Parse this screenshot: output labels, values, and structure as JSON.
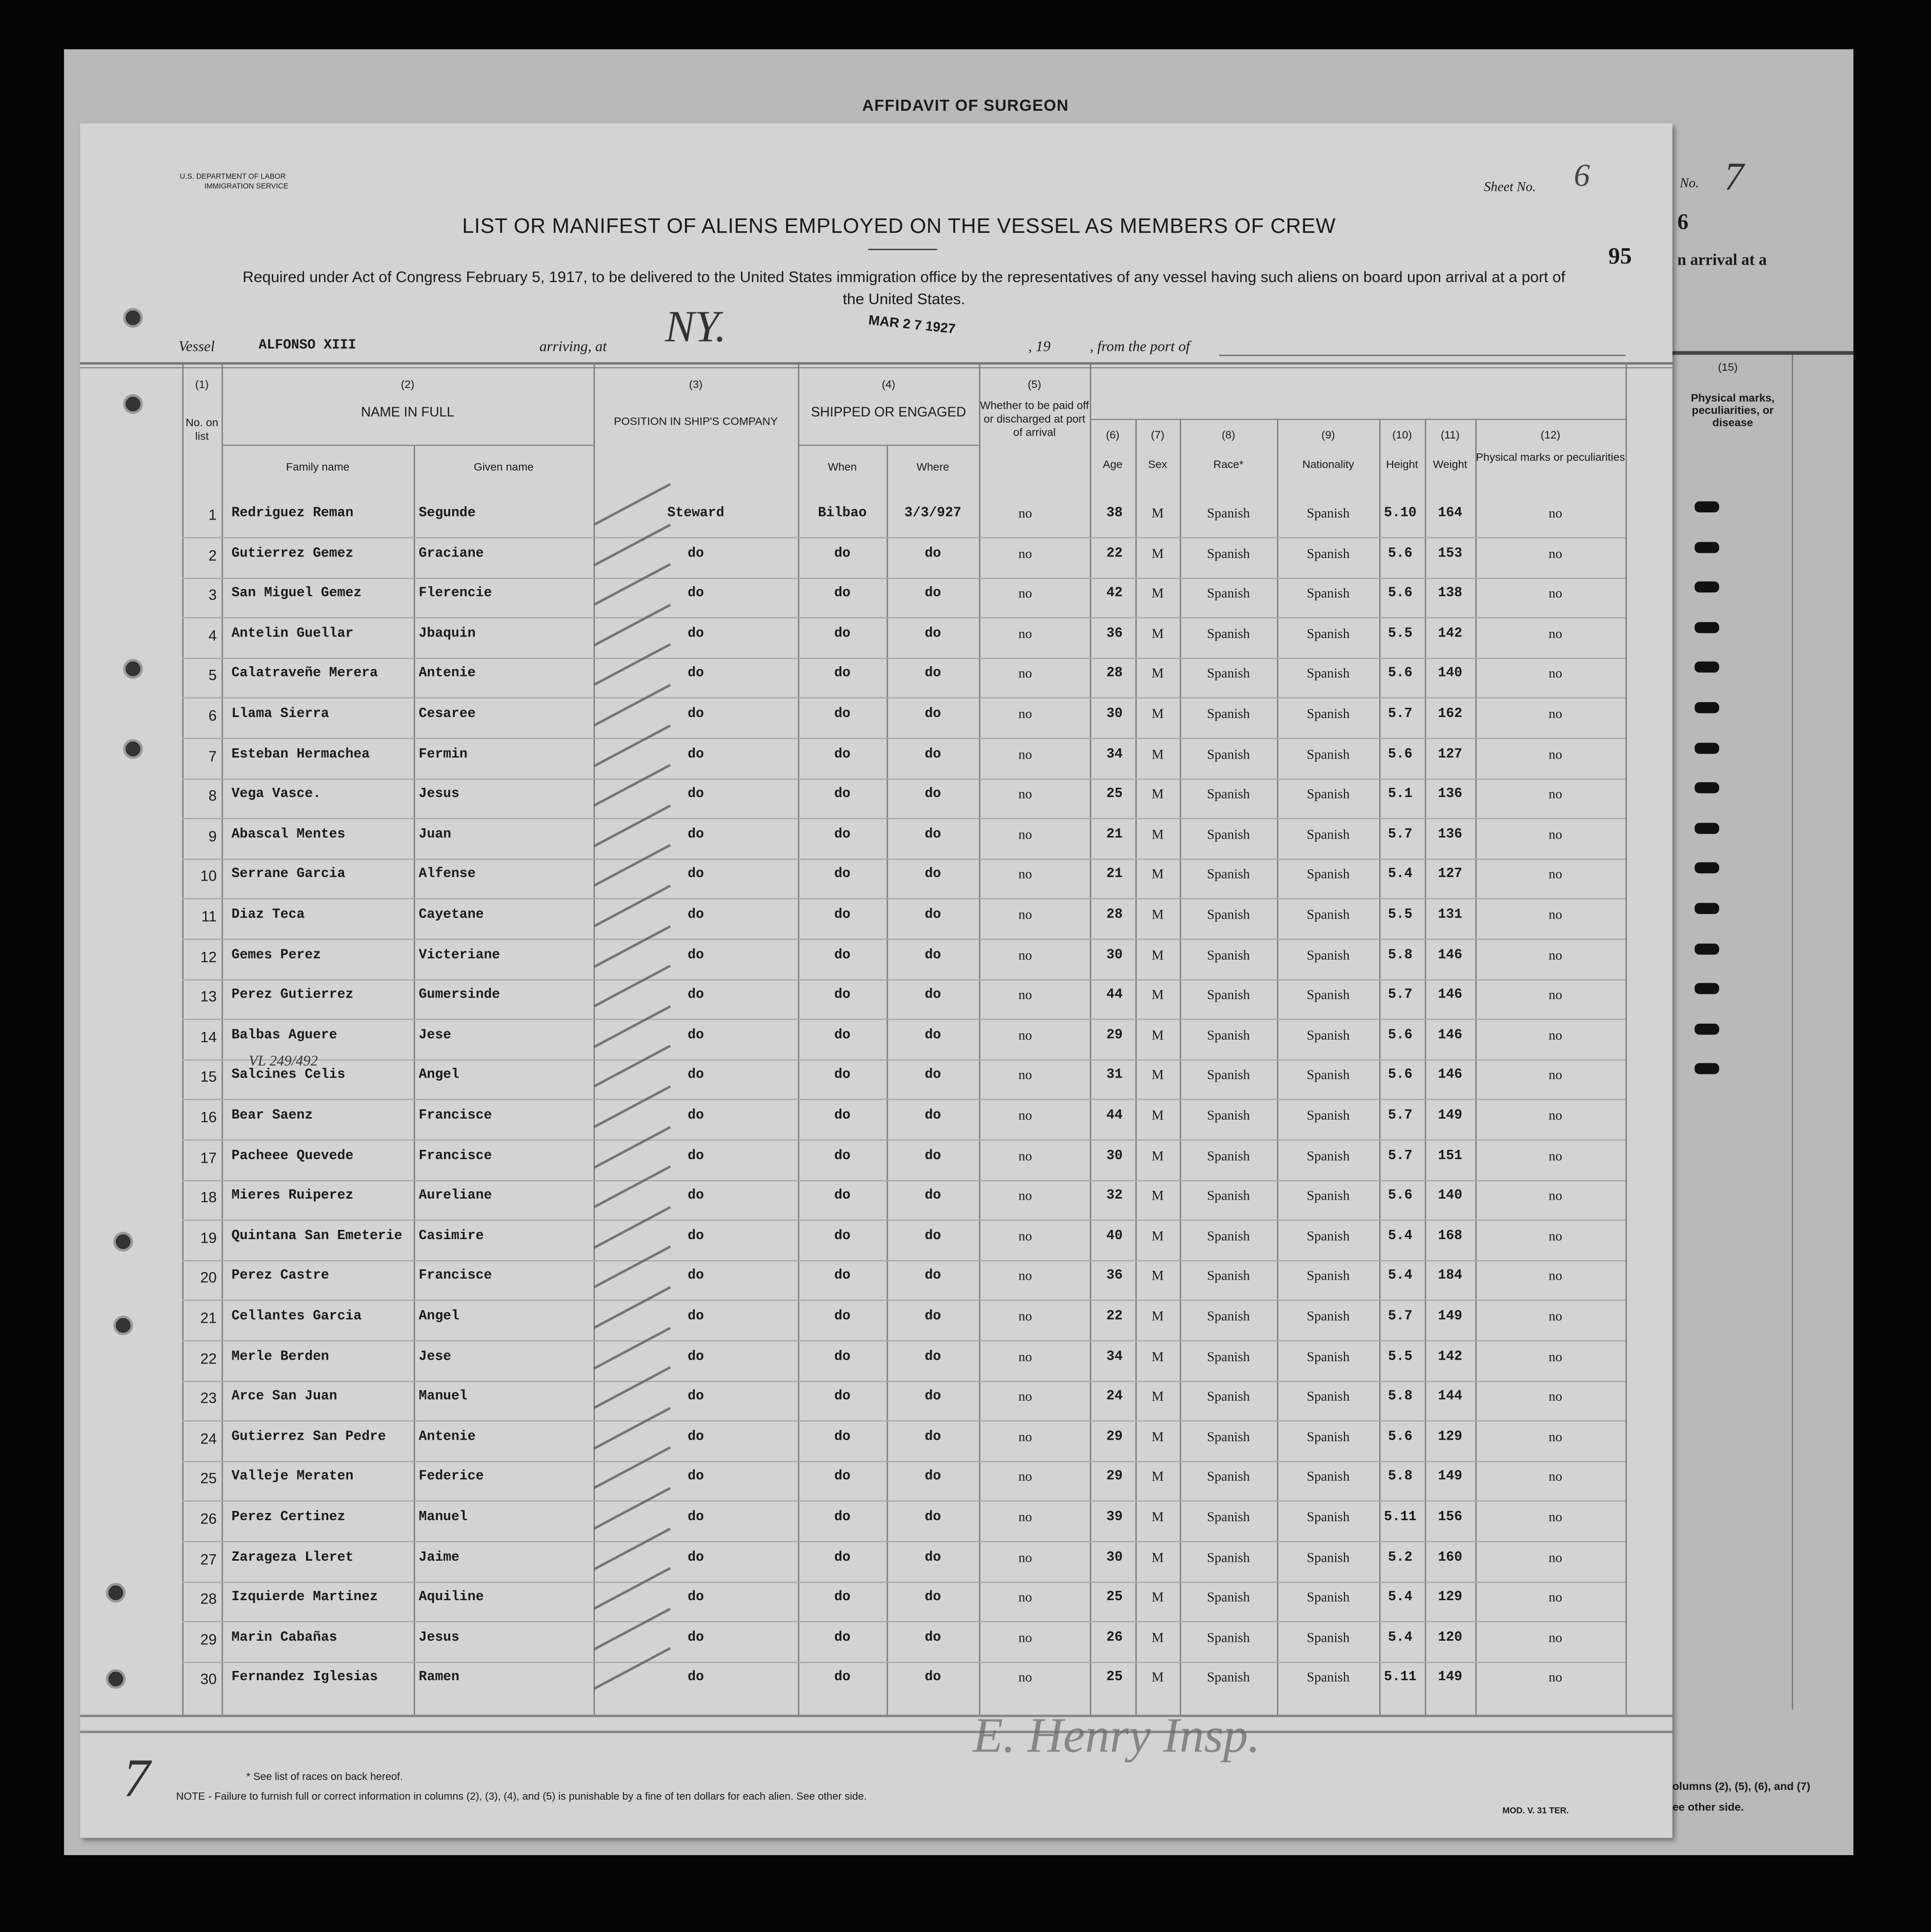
{
  "back_page": {
    "title": "AFFIDAVIT OF SURGEON",
    "no_label": "No.",
    "no_value": "7",
    "partial_digit": "6",
    "partial_text": "n arrival at a",
    "col15_number": "(15)",
    "col15_label": "Physical marks, peculiarities, or disease",
    "footer_partial_1": "olumns (2), (5), (6), and (7)",
    "footer_partial_2": "ee other side."
  },
  "form": {
    "agency": "U.S. DEPARTMENT OF LABOR",
    "service": "IMMIGRATION SERVICE",
    "sheet_label": "Sheet No.",
    "sheet_value": "6",
    "page_number": "95",
    "title": "LIST OR MANIFEST OF ALIENS EMPLOYED ON THE VESSEL AS MEMBERS OF CREW",
    "subtitle": "Required under Act of Congress February 5, 1917, to be delivered to the United States immigration office by the representatives of any vessel having such aliens on board upon arrival at a port of the United States.",
    "stamp_date": "MAR 2 7 1927",
    "vessel_label": "Vessel",
    "vessel_value": "ALFONSO XIII",
    "arriving_label": "arriving, at",
    "arriving_value": "NY.",
    "year_label": ", 19",
    "from_port_label": ", from the port of"
  },
  "columns": {
    "c1_num": "(1)",
    "c1": "No. on list",
    "c2_num": "(2)",
    "c2": "NAME IN FULL",
    "c2a": "Family name",
    "c2b": "Given name",
    "c3_num": "(3)",
    "c3": "POSITION IN SHIP'S COMPANY",
    "c4_num": "(4)",
    "c4": "SHIPPED OR ENGAGED",
    "c4a": "When",
    "c4b": "Where",
    "c5_num": "(5)",
    "c5": "Whether to be paid off or discharged at port of arrival",
    "c6_num": "(6)",
    "c6": "Age",
    "c7_num": "(7)",
    "c7": "Sex",
    "c8_num": "(8)",
    "c8": "Race*",
    "c9_num": "(9)",
    "c9": "Nationality",
    "c10_num": "(10)",
    "c10": "Height",
    "c11_num": "(11)",
    "c11": "Weight",
    "c12_num": "(12)",
    "c12": "Physical marks or peculiarities"
  },
  "rows": [
    [
      "1",
      "Redriguez Reman",
      "Segunde",
      "Steward",
      "Bilbao",
      "3/3/927",
      "no",
      "38",
      "M",
      "Spanish",
      "Spanish",
      "5.10",
      "164",
      "no"
    ],
    [
      "2",
      "Gutierrez Gemez",
      "Graciane",
      "do",
      "do",
      "do",
      "no",
      "22",
      "M",
      "Spanish",
      "Spanish",
      "5.6",
      "153",
      "no"
    ],
    [
      "3",
      "San Miguel Gemez",
      "Flerencie",
      "do",
      "do",
      "do",
      "no",
      "42",
      "M",
      "Spanish",
      "Spanish",
      "5.6",
      "138",
      "no"
    ],
    [
      "4",
      "Antelin Guellar",
      "Jbaquin",
      "do",
      "do",
      "do",
      "no",
      "36",
      "M",
      "Spanish",
      "Spanish",
      "5.5",
      "142",
      "no"
    ],
    [
      "5",
      "Calatraveñe Merera",
      "Antenie",
      "do",
      "do",
      "do",
      "no",
      "28",
      "M",
      "Spanish",
      "Spanish",
      "5.6",
      "140",
      "no"
    ],
    [
      "6",
      "Llama Sierra",
      "Cesaree",
      "do",
      "do",
      "do",
      "no",
      "30",
      "M",
      "Spanish",
      "Spanish",
      "5.7",
      "162",
      "no"
    ],
    [
      "7",
      "Esteban Hermachea",
      "Fermin",
      "do",
      "do",
      "do",
      "no",
      "34",
      "M",
      "Spanish",
      "Spanish",
      "5.6",
      "127",
      "no"
    ],
    [
      "8",
      "Vega Vasce.",
      "Jesus",
      "do",
      "do",
      "do",
      "no",
      "25",
      "M",
      "Spanish",
      "Spanish",
      "5.1",
      "136",
      "no"
    ],
    [
      "9",
      "Abascal Mentes",
      "Juan",
      "do",
      "do",
      "do",
      "no",
      "21",
      "M",
      "Spanish",
      "Spanish",
      "5.7",
      "136",
      "no"
    ],
    [
      "10",
      "Serrane Garcia",
      "Alfense",
      "do",
      "do",
      "do",
      "no",
      "21",
      "M",
      "Spanish",
      "Spanish",
      "5.4",
      "127",
      "no"
    ],
    [
      "11",
      "Diaz Teca",
      "Cayetane",
      "do",
      "do",
      "do",
      "no",
      "28",
      "M",
      "Spanish",
      "Spanish",
      "5.5",
      "131",
      "no"
    ],
    [
      "12",
      "Gemes Perez",
      "Victeriane",
      "do",
      "do",
      "do",
      "no",
      "30",
      "M",
      "Spanish",
      "Spanish",
      "5.8",
      "146",
      "no"
    ],
    [
      "13",
      "Perez Gutierrez",
      "Gumersinde",
      "do",
      "do",
      "do",
      "no",
      "44",
      "M",
      "Spanish",
      "Spanish",
      "5.7",
      "146",
      "no"
    ],
    [
      "14",
      "Balbas Aguere",
      "Jese",
      "do",
      "do",
      "do",
      "no",
      "29",
      "M",
      "Spanish",
      "Spanish",
      "5.6",
      "146",
      "no"
    ],
    [
      "15",
      "Salcines Celis",
      "Angel",
      "do",
      "do",
      "do",
      "no",
      "31",
      "M",
      "Spanish",
      "Spanish",
      "5.6",
      "146",
      "no"
    ],
    [
      "16",
      "Bear Saenz",
      "Francisce",
      "do",
      "do",
      "do",
      "no",
      "44",
      "M",
      "Spanish",
      "Spanish",
      "5.7",
      "149",
      "no"
    ],
    [
      "17",
      "Pacheee Quevede",
      "Francisce",
      "do",
      "do",
      "do",
      "no",
      "30",
      "M",
      "Spanish",
      "Spanish",
      "5.7",
      "151",
      "no"
    ],
    [
      "18",
      "Mieres Ruiperez",
      "Aureliane",
      "do",
      "do",
      "do",
      "no",
      "32",
      "M",
      "Spanish",
      "Spanish",
      "5.6",
      "140",
      "no"
    ],
    [
      "19",
      "Quintana San Emeterie",
      "Casimire",
      "do",
      "do",
      "do",
      "no",
      "40",
      "M",
      "Spanish",
      "Spanish",
      "5.4",
      "168",
      "no"
    ],
    [
      "20",
      "Perez Castre",
      "Francisce",
      "do",
      "do",
      "do",
      "no",
      "36",
      "M",
      "Spanish",
      "Spanish",
      "5.4",
      "184",
      "no"
    ],
    [
      "21",
      "Cellantes Garcia",
      "Angel",
      "do",
      "do",
      "do",
      "no",
      "22",
      "M",
      "Spanish",
      "Spanish",
      "5.7",
      "149",
      "no"
    ],
    [
      "22",
      "Merle Berden",
      "Jese",
      "do",
      "do",
      "do",
      "no",
      "34",
      "M",
      "Spanish",
      "Spanish",
      "5.5",
      "142",
      "no"
    ],
    [
      "23",
      "Arce San Juan",
      "Manuel",
      "do",
      "do",
      "do",
      "no",
      "24",
      "M",
      "Spanish",
      "Spanish",
      "5.8",
      "144",
      "no"
    ],
    [
      "24",
      "Gutierrez San Pedre",
      "Antenie",
      "do",
      "do",
      "do",
      "no",
      "29",
      "M",
      "Spanish",
      "Spanish",
      "5.6",
      "129",
      "no"
    ],
    [
      "25",
      "Valleje Meraten",
      "Federice",
      "do",
      "do",
      "do",
      "no",
      "29",
      "M",
      "Spanish",
      "Spanish",
      "5.8",
      "149",
      "no"
    ],
    [
      "26",
      "Perez Certinez",
      "Manuel",
      "do",
      "do",
      "do",
      "no",
      "39",
      "M",
      "Spanish",
      "Spanish",
      "5.11",
      "156",
      "no"
    ],
    [
      "27",
      "Zarageza Lleret",
      "Jaime",
      "do",
      "do",
      "do",
      "no",
      "30",
      "M",
      "Spanish",
      "Spanish",
      "5.2",
      "160",
      "no"
    ],
    [
      "28",
      "Izquierde Martinez",
      "Aquiline",
      "do",
      "do",
      "do",
      "no",
      "25",
      "M",
      "Spanish",
      "Spanish",
      "5.4",
      "129",
      "no"
    ],
    [
      "29",
      "Marin Cabañas",
      "Jesus",
      "do",
      "do",
      "do",
      "no",
      "26",
      "M",
      "Spanish",
      "Spanish",
      "5.4",
      "120",
      "no"
    ],
    [
      "30",
      "Fernandez Iglesias",
      "Ramen",
      "do",
      "do",
      "do",
      "no",
      "25",
      "M",
      "Spanish",
      "Spanish",
      "5.11",
      "149",
      "no"
    ]
  ],
  "annotations": {
    "row14_note": "VL 249/492",
    "margin_number": "7",
    "signature": "E. Henry Insp."
  },
  "footer": {
    "race_note": "* See list of races on back hereof.",
    "note": "NOTE - Failure to furnish full or correct information in columns (2), (3), (4), and (5) is punishable by a fine of ten dollars for each alien. See other side.",
    "form_code": "MOD. V. 31 TER."
  }
}
